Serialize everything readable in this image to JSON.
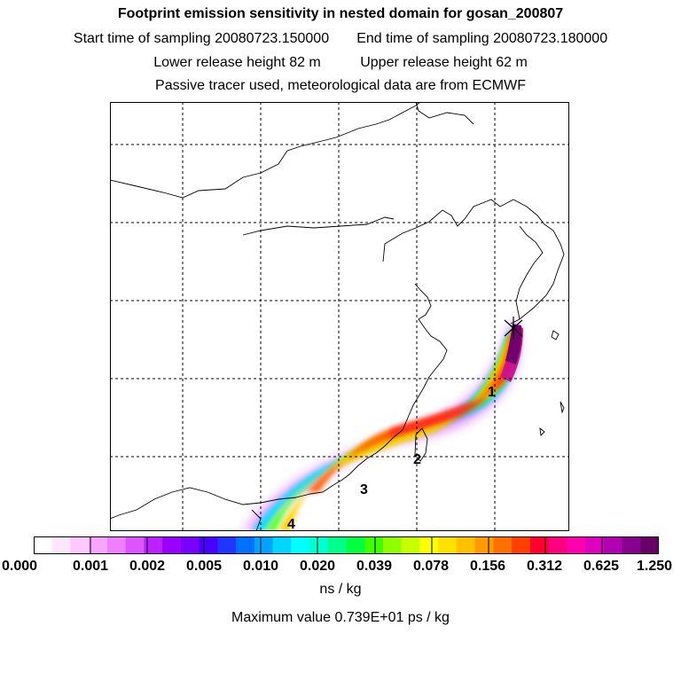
{
  "header": {
    "title": "Footprint emission sensitivity in nested domain for gosan_200807",
    "start_time": "Start time of sampling 20080723.150000",
    "end_time": "End time of sampling 20080723.180000",
    "lower_release": "Lower release height   82 m",
    "upper_release": "Upper release height   62 m",
    "note": "Passive tracer used, meteorological data are from ECMWF"
  },
  "map": {
    "trajectory_labels": [
      "1",
      "2",
      "3",
      "4"
    ],
    "source_marker": "receptor-star"
  },
  "colorbar": {
    "ticks": [
      "0.000",
      "0.001",
      "0.002",
      "0.005",
      "0.010",
      "0.020",
      "0.039",
      "0.078",
      "0.156",
      "0.312",
      "0.625",
      "1.250"
    ],
    "units": "ns / kg",
    "colors": [
      "#ffffff",
      "#ffe6ff",
      "#ffc9ff",
      "#f7a6ff",
      "#ee80ff",
      "#dd55ff",
      "#bb22ff",
      "#9a00ff",
      "#7a00ff",
      "#4a00ff",
      "#2035ff",
      "#0070ff",
      "#00a4ff",
      "#00d6ff",
      "#00ffff",
      "#00ffd0",
      "#00ff8a",
      "#00ff40",
      "#40ff00",
      "#90ff00",
      "#c8ff00",
      "#ffff00",
      "#ffe000",
      "#ffc000",
      "#ff9a00",
      "#ff7000",
      "#ff4000",
      "#ff0030",
      "#ff0080",
      "#ff00b0",
      "#e000c0",
      "#b000b0",
      "#880090",
      "#660066"
    ]
  },
  "footer": {
    "max_value": "Maximum value  0.739E+01 ps / kg"
  }
}
